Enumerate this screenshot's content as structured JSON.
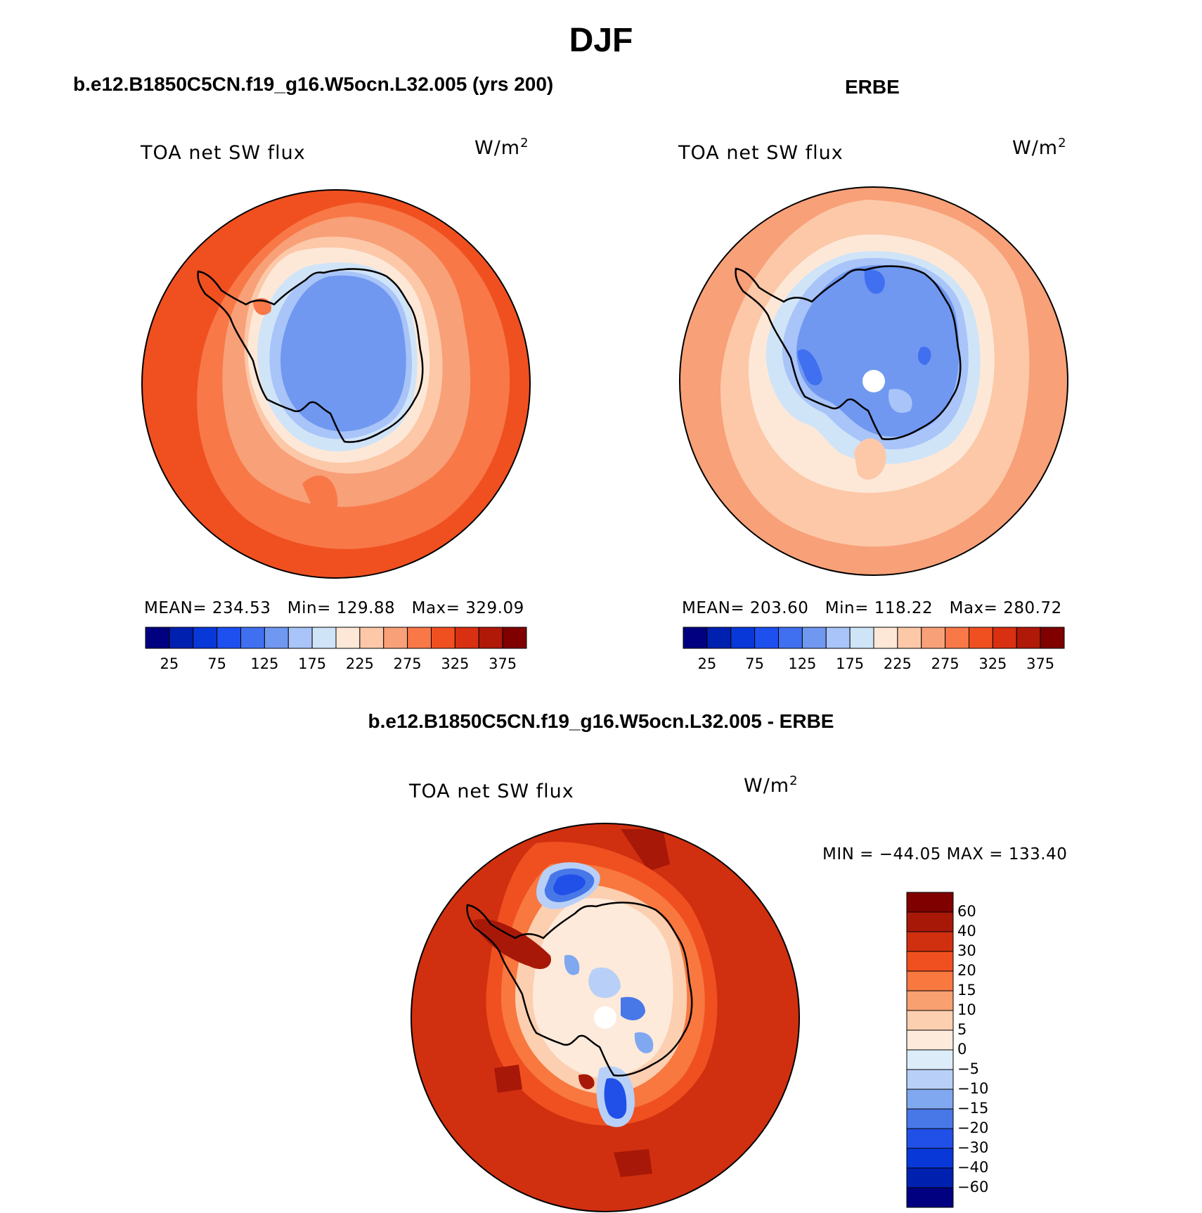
{
  "figure": {
    "title": "DJF",
    "colors": {
      "abs_palette": [
        "#000080",
        "#0020b0",
        "#0838d8",
        "#1e50f0",
        "#4070f0",
        "#7098f0",
        "#a8c4f8",
        "#d0e4f8",
        "#fde8d8",
        "#fcc8a8",
        "#f8a078",
        "#f87848",
        "#f05020",
        "#d83010",
        "#b01808",
        "#800000"
      ],
      "diff_palette": [
        "#000080",
        "#0020b0",
        "#0838d8",
        "#2050e8",
        "#4878e8",
        "#80a8f0",
        "#b8d0f8",
        "#dcecf8",
        "#fdeadb",
        "#fccfb0",
        "#f8a070",
        "#f87840",
        "#f05020",
        "#d03010",
        "#a81808",
        "#800000"
      ],
      "coastline": "#000000"
    }
  },
  "panels": {
    "model": {
      "case_title": "b.e12.B1850C5CN.f19_g16.W5ocn.L32.005 (yrs 200)",
      "variable": "TOA net SW flux",
      "units_base": "W/m",
      "units_exp": "2",
      "stats": "MEAN= 234.53   Min= 129.88   Max= 329.09",
      "colorbar_ticks": [
        "25",
        "75",
        "125",
        "175",
        "225",
        "275",
        "325",
        "375"
      ]
    },
    "obs": {
      "case_title": "ERBE",
      "variable": "TOA net SW flux",
      "units_base": "W/m",
      "units_exp": "2",
      "stats": "MEAN= 203.60   Min= 118.22   Max= 280.72",
      "colorbar_ticks": [
        "25",
        "75",
        "125",
        "175",
        "225",
        "275",
        "325",
        "375"
      ]
    },
    "diff": {
      "case_title": "b.e12.B1850C5CN.f19_g16.W5ocn.L32.005 - ERBE",
      "variable": "TOA net SW flux",
      "units_base": "W/m",
      "units_exp": "2",
      "stats": "MIN = −44.05 MAX = 133.40",
      "colorbar_ticks": [
        "60",
        "40",
        "30",
        "20",
        "15",
        "10",
        "5",
        "0",
        "−5",
        "−10",
        "−15",
        "−20",
        "−30",
        "−40",
        "−60"
      ]
    }
  }
}
